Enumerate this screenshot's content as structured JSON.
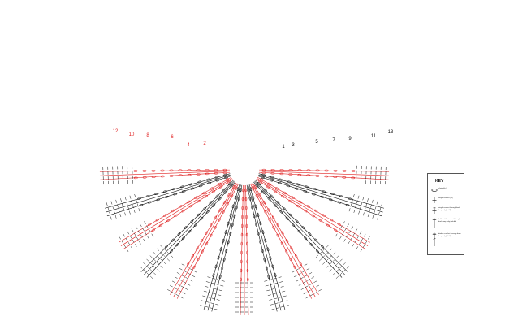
{
  "diagram": {
    "left_rows_red": [
      "12",
      "10",
      "8",
      "6",
      "4",
      "2"
    ],
    "right_rows_black": [
      "1",
      "3",
      "5",
      "7",
      "9",
      "11",
      "13"
    ],
    "colors": {
      "accent": "#e02020",
      "ink": "#111111"
    }
  },
  "key": {
    "title": "KEY",
    "items": [
      {
        "label": "chain (ch)",
        "icon": "chain-oval-icon"
      },
      {
        "label": "single crochet (sc)",
        "icon": "single-crochet-icon"
      },
      {
        "label": "single crochet through back loop only (sctbl)",
        "icon": "sc-back-loop-icon"
      },
      {
        "label": "half double crochet through back loop only (hdctbl)",
        "icon": "hdc-back-loop-icon"
      },
      {
        "label": "double crochet through back loop only (dctbl)",
        "icon": "dc-back-loop-icon"
      }
    ]
  }
}
